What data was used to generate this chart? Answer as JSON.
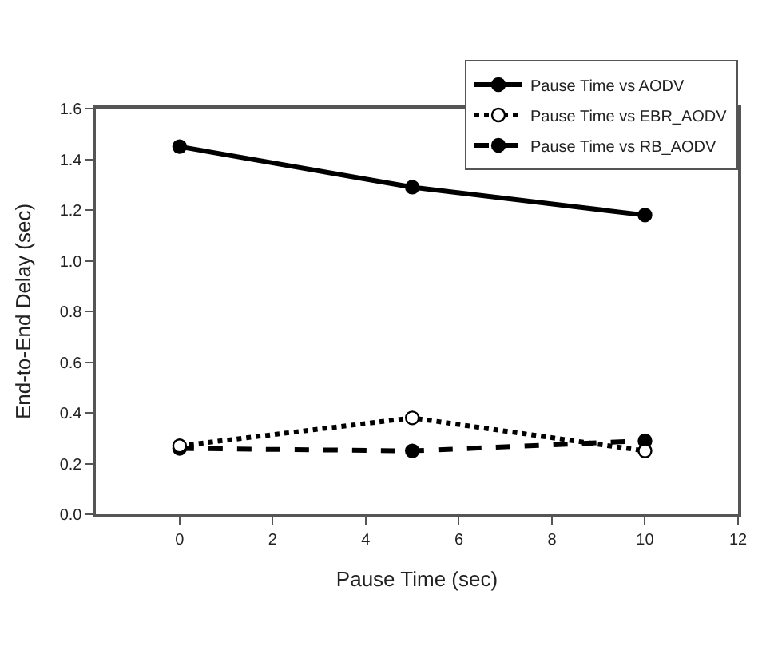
{
  "chart_data": {
    "type": "line",
    "xlabel": "Pause Time (sec)",
    "ylabel": "End-to-End Delay (sec)",
    "x": [
      0,
      5,
      10
    ],
    "series": [
      {
        "name": "Pause Time vs AODV",
        "color": "#000000",
        "values": [
          1.45,
          1.29,
          1.18
        ],
        "marker": "circle",
        "line_style": "solid"
      },
      {
        "name": "Pause Time vs EBR_AODV",
        "color": "#000000",
        "values": [
          0.27,
          0.38,
          0.25
        ],
        "marker": "circle",
        "line_style": "dotted"
      },
      {
        "name": "Pause Time vs RB_AODV",
        "color": "#000000",
        "values": [
          0.26,
          0.25,
          0.29
        ],
        "marker": "circle",
        "line_style": "dashed"
      }
    ],
    "xlim": [
      -1.8,
      12
    ],
    "xticks": [
      0,
      2,
      4,
      6,
      8,
      10,
      12
    ],
    "ylim": [
      0,
      1.6
    ],
    "yticks": [
      {
        "value": 0,
        "label": "0.0"
      },
      0.2,
      0.4,
      0.6,
      0.8,
      {
        "value": 1,
        "label": "1.0"
      },
      1.2,
      1.4,
      1.6
    ],
    "legend": "top right"
  }
}
